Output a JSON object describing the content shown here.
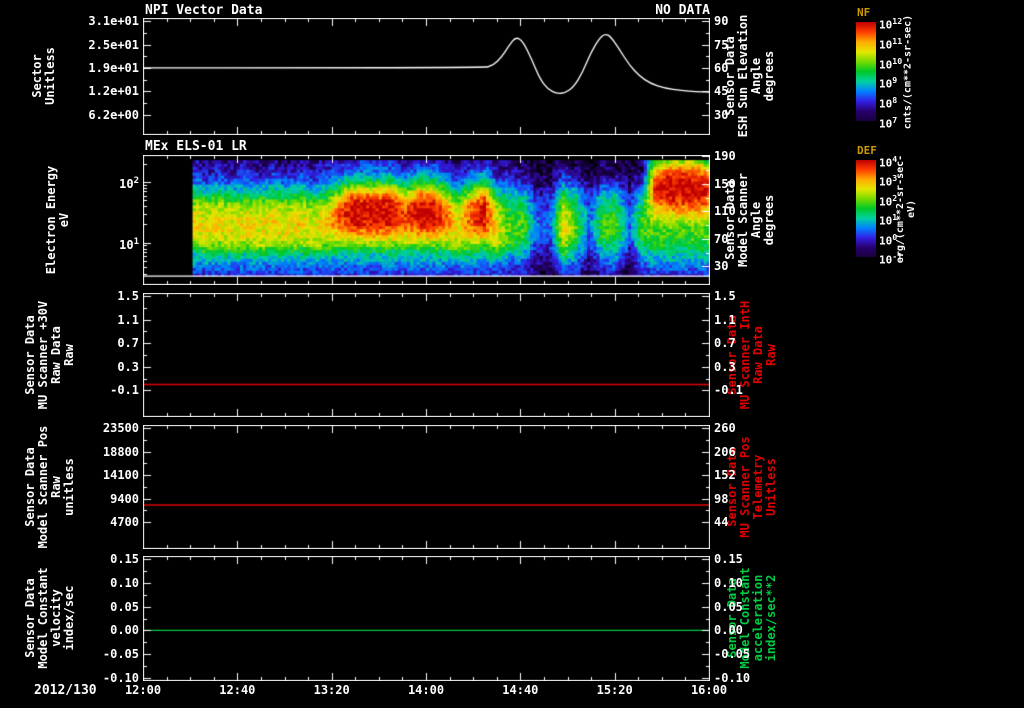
{
  "header": {
    "panel1_title": "NPI Vector Data",
    "panel1_status": "NO DATA",
    "panel2_title": "MEx ELS-01 LR"
  },
  "x_axis": {
    "date_label": "2012/130",
    "start_hour": 12,
    "end_hour": 16,
    "tick_labels": [
      "12:00",
      "12:40",
      "13:20",
      "14:00",
      "14:40",
      "15:20",
      "16:00"
    ],
    "major_step_minutes": 40,
    "minor_step_minutes": 10
  },
  "colorbars": [
    {
      "label": "NF",
      "label_color": "#cc9900",
      "unit": "cnts/(cm**2-sr-sec)",
      "ticks": [
        {
          "base": "10",
          "exp": "12"
        },
        {
          "base": "10",
          "exp": "11"
        },
        {
          "base": "10",
          "exp": "10"
        },
        {
          "base": "10",
          "exp": "9"
        },
        {
          "base": "10",
          "exp": "8"
        },
        {
          "base": "10",
          "exp": "7"
        }
      ],
      "gradient": [
        "#be0000",
        "#ff3c00",
        "#ffaa00",
        "#e6e600",
        "#78dc00",
        "#00c828",
        "#00d2a0",
        "#0082ff",
        "#3220e6",
        "#28006e",
        "#1a0040"
      ]
    },
    {
      "label": "DEF",
      "label_color": "#cc9900",
      "unit": "erg/(cm**2-sr-sec-eV)",
      "ticks": [
        {
          "base": "10",
          "exp": "4"
        },
        {
          "base": "10",
          "exp": "3"
        },
        {
          "base": "10",
          "exp": "2"
        },
        {
          "base": "10",
          "exp": "1"
        },
        {
          "base": "10",
          "exp": "0"
        },
        {
          "base": "10",
          "exp": "-1"
        }
      ],
      "gradient": [
        "#be0000",
        "#ff3c00",
        "#ffaa00",
        "#e6e600",
        "#78dc00",
        "#00c828",
        "#00d2a0",
        "#0082ff",
        "#3220e6",
        "#28006e",
        "#1a0040"
      ]
    }
  ],
  "chart_data": [
    {
      "name": "npi-sun-elevation",
      "type": "line",
      "left_label": "Sector\nUnitless",
      "right_label": "Sensor Data\nESH Sun Elevation\nAngle\ndegrees",
      "right_label_color": "#ffffff",
      "left_tick_labels": [
        "3.1e+01",
        "2.5e+01",
        "1.9e+01",
        "1.2e+01",
        "6.2e+00"
      ],
      "right_tick_labels": [
        "90",
        "75",
        "60",
        "45",
        "30"
      ],
      "tick_values": [
        90,
        75,
        60,
        45,
        30
      ],
      "y_range": [
        92,
        17
      ],
      "series": [
        {
          "name": "sun-elevation-angle-degrees",
          "color": "#ffffff",
          "x": [
            12.0,
            14.4,
            14.47,
            14.53,
            14.58,
            14.63,
            14.68,
            14.74,
            14.8,
            14.86,
            14.92,
            14.98,
            15.04,
            15.1,
            15.16,
            15.22,
            15.26,
            15.3,
            15.36,
            15.43,
            15.5,
            15.58,
            15.68,
            15.8,
            15.9,
            16.0
          ],
          "y": [
            60,
            60,
            61.5,
            67,
            74,
            80,
            77,
            66,
            53,
            46,
            43.5,
            44,
            48,
            57,
            70,
            79,
            82,
            80,
            72,
            62,
            55,
            50,
            47,
            45.5,
            44.8,
            44.5
          ]
        }
      ]
    },
    {
      "name": "els-energy-spectrogram",
      "type": "spectrogram",
      "left_label": "Electron Energy\neV",
      "right_label": "Sensor Data\nModel Scanner\nAngle\ndegrees",
      "right_label_color": "#ffffff",
      "energy_range_ev": [
        2,
        280
      ],
      "left_ticks": [
        {
          "base": "10",
          "exp": "2",
          "energy": 100
        },
        {
          "base": "10",
          "exp": "1",
          "energy": 10
        }
      ],
      "right_tick_labels": [
        "190",
        "150",
        "110",
        "70",
        "30"
      ],
      "right_tick_values": [
        190,
        150,
        110,
        70,
        30
      ],
      "right_range": [
        192,
        3
      ],
      "baseline_energy_ev": 2.8,
      "colormap": [
        "#000000",
        "#28006e",
        "#3220e6",
        "#0082ff",
        "#00d2a0",
        "#00c828",
        "#78dc00",
        "#e6e600",
        "#ffaa00",
        "#ff3c00",
        "#be0000"
      ],
      "spectrogram": {
        "t_start_hour": 12.35,
        "t_end_hour": 16.0,
        "energy_top_ev": 230,
        "energy_bottom_ev": 2.8,
        "intensity_scale": [
          0,
          10
        ],
        "profiles": {
          "Q": [
            2,
            3,
            4,
            6,
            7,
            7.5,
            7,
            6,
            4.5,
            3,
            2,
            1.5
          ],
          "Q2": [
            2,
            3,
            4.5,
            6.5,
            7,
            7,
            6.5,
            6,
            4,
            2.5,
            1.5,
            1
          ],
          "R": [
            2,
            3,
            4,
            6,
            8,
            9.5,
            9.9,
            9.6,
            8,
            5,
            3,
            2
          ],
          "R2": [
            2,
            3,
            4,
            6,
            7.5,
            8.8,
            9,
            8.2,
            6,
            4,
            2.5,
            1.5
          ],
          "T": [
            1.5,
            2.5,
            3.5,
            5,
            5.5,
            5.5,
            5,
            4.5,
            3.5,
            2.5,
            1.5,
            1
          ],
          "D": [
            0.5,
            1,
            1.5,
            2,
            2.5,
            2.8,
            2.5,
            2,
            1.5,
            1,
            0.5,
            0.3
          ],
          "M": [
            1.5,
            2.5,
            3.5,
            4.5,
            5.5,
            5.5,
            5,
            4.5,
            3.5,
            2,
            1,
            0.8
          ],
          "B": [
            2,
            3,
            5,
            6.5,
            7.5,
            7.5,
            7,
            6,
            4.5,
            3,
            2,
            1
          ],
          "H": [
            2,
            3,
            4,
            5,
            5.5,
            6,
            7.5,
            9,
            9.9,
            9.8,
            9,
            6.5
          ],
          "H2": [
            2,
            3,
            4,
            5,
            5.5,
            6,
            7,
            8.5,
            9.5,
            9.3,
            8,
            5.5
          ]
        },
        "column_sequence": [
          "Q",
          "Q2",
          "Q",
          "Q2",
          "Q",
          "Q2",
          "Q",
          "Q2",
          "Q",
          "Q2",
          "Q",
          "R2",
          "R",
          "R",
          "R",
          "R",
          "R2",
          "R",
          "R",
          "R2",
          "Q2",
          "R2",
          "R",
          "Q2",
          "T",
          "M",
          "D",
          "D",
          "B",
          "M",
          "D",
          "M",
          "M",
          "D",
          "M",
          "H2",
          "H",
          "H",
          "H",
          "H2"
        ]
      }
    },
    {
      "name": "mu-scanner-30v",
      "type": "line",
      "left_label": "Sensor Data\nMU Scanner +30V\nRaw Data\nRaw",
      "right_label": "Sensor Data\nMU Scanner IntH\nRaw Data\nRaw",
      "right_label_color": "#e00000",
      "left_tick_labels": [
        "1.5",
        "1.1",
        "0.7",
        "0.3",
        "-0.1"
      ],
      "right_tick_labels": [
        "1.5",
        "1.1",
        "0.7",
        "0.3",
        "-0.1"
      ],
      "tick_values": [
        1.5,
        1.1,
        0.7,
        0.3,
        -0.1
      ],
      "y_range": [
        1.55,
        -0.55
      ],
      "series": [
        {
          "name": "mu-scanner-30v-raw",
          "color": "#e00000",
          "const_value": 0.0
        }
      ]
    },
    {
      "name": "model-scanner-pos",
      "type": "line",
      "left_label": "Sensor Data\nModel Scanner Pos\nRaw\nunitless",
      "right_label": "Sensor Data\nMU Scanner Pos\nTelemetry\nUnitless",
      "right_label_color": "#e00000",
      "left_tick_labels": [
        "23500",
        "18800",
        "14100",
        "9400",
        "4700"
      ],
      "right_tick_labels": [
        "260",
        "206",
        "152",
        "98",
        "44"
      ],
      "tick_values": [
        23500,
        18800,
        14100,
        9400,
        4700
      ],
      "y_range": [
        24100,
        -700
      ],
      "series": [
        {
          "name": "model-scanner-pos-raw",
          "color": "#e00000",
          "const_value": 8100
        }
      ]
    },
    {
      "name": "model-constant-velocity",
      "type": "line",
      "left_label": "Sensor Data\nModel Constant\nvelocity\nindex/sec",
      "right_label": "Sensor Data\nModel Constant\nacceleration\nindex/sec**2",
      "right_label_color": "#00cc44",
      "left_tick_labels": [
        "0.15",
        "0.10",
        "0.05",
        "0.00",
        "-0.05",
        "-0.10"
      ],
      "right_tick_labels": [
        "0.15",
        "0.10",
        "0.05",
        "0.00",
        "-0.05",
        "-0.10"
      ],
      "tick_values": [
        0.15,
        0.1,
        0.05,
        0.0,
        -0.05,
        -0.1
      ],
      "y_range": [
        0.156,
        -0.106
      ],
      "series": [
        {
          "name": "model-constant-velocity-line",
          "color": "#00cc44",
          "const_value": 0.0
        }
      ]
    }
  ]
}
